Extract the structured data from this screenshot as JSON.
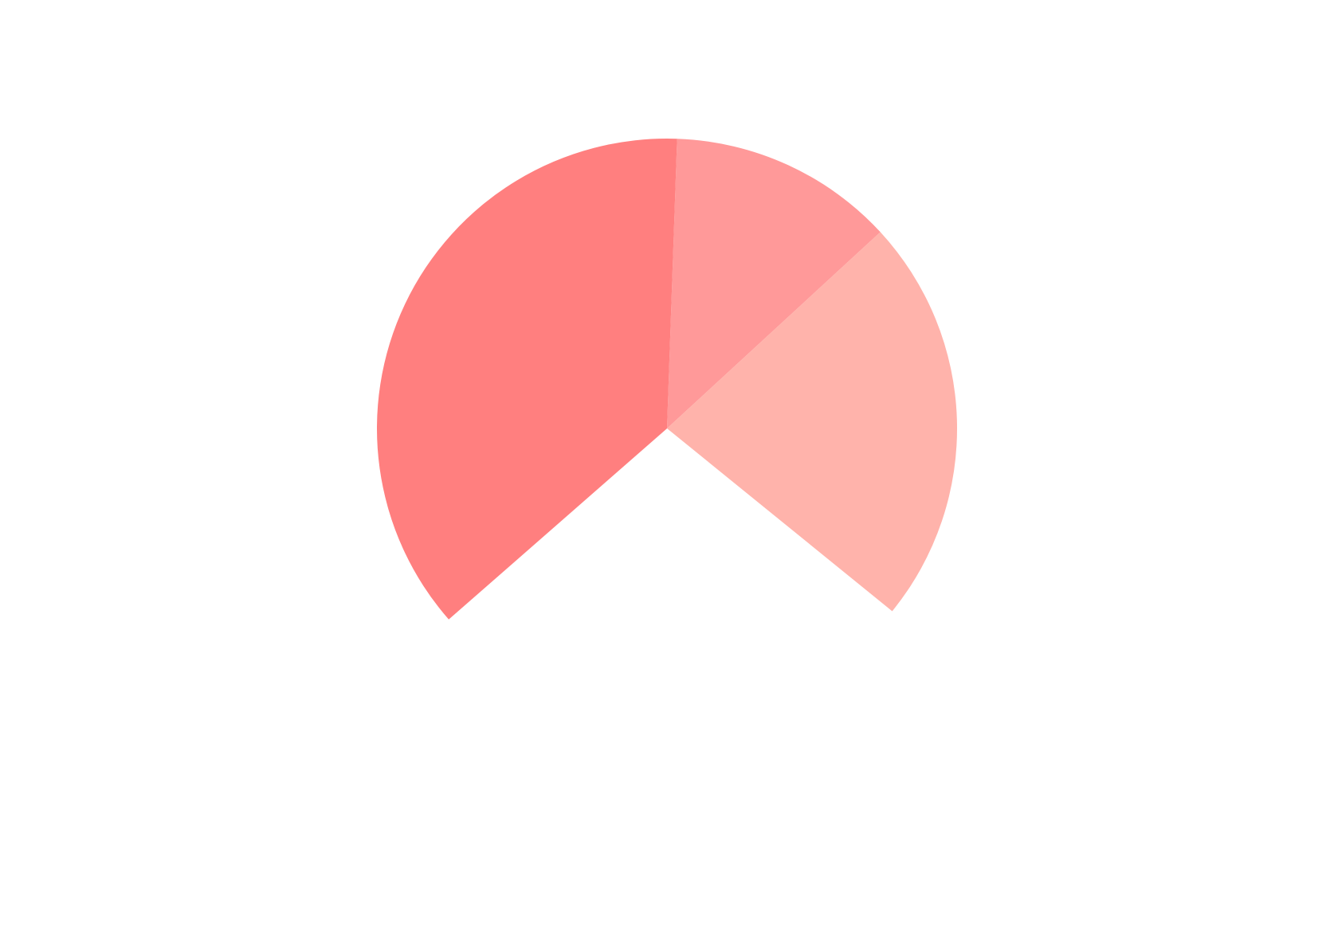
{
  "chart_data": {
    "type": "pie",
    "title": "",
    "start_angle_deg": 2,
    "direction": "clockwise",
    "slices": [
      {
        "value": 12.6,
        "color": "#FF9999"
      },
      {
        "value": 22.7,
        "color": "#FFB3AB"
      },
      {
        "value": 27.7,
        "color": "#FFFFFF"
      },
      {
        "value": 37.0,
        "color": "#FF7F7F"
      }
    ],
    "legend": null,
    "data_labels": []
  }
}
